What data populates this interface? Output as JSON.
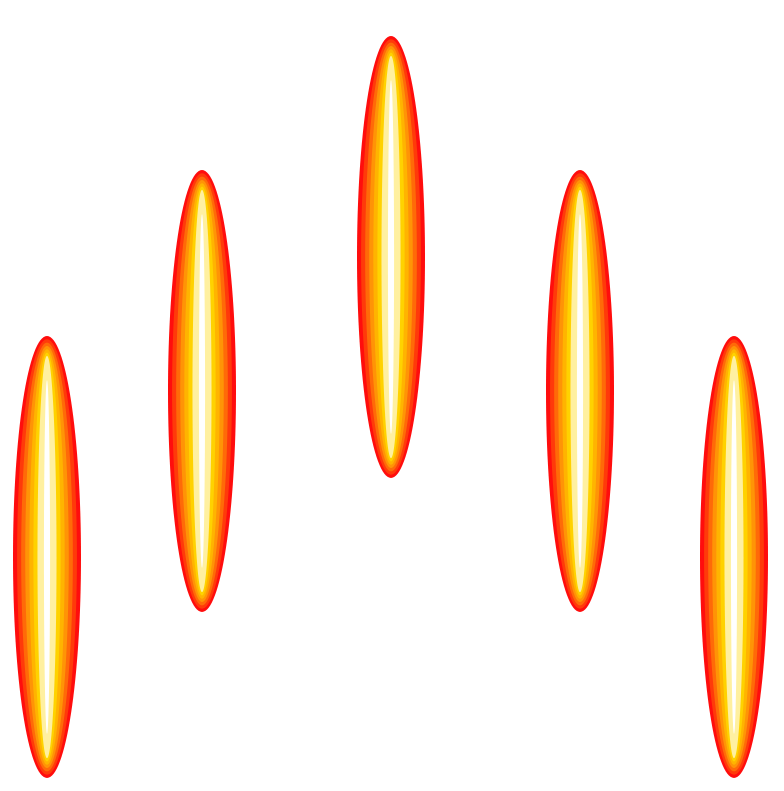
{
  "scene": {
    "background_color": "#ffffff",
    "shape_name": "flame-ellipse",
    "shape_count": 5,
    "arrangement": "arch",
    "gradient_colors": [
      "#ff0d0d",
      "#ff3a0a",
      "#ff6a08",
      "#ff9406",
      "#ffb400",
      "#ffd200",
      "#fff0a0",
      "#ffffff"
    ]
  }
}
